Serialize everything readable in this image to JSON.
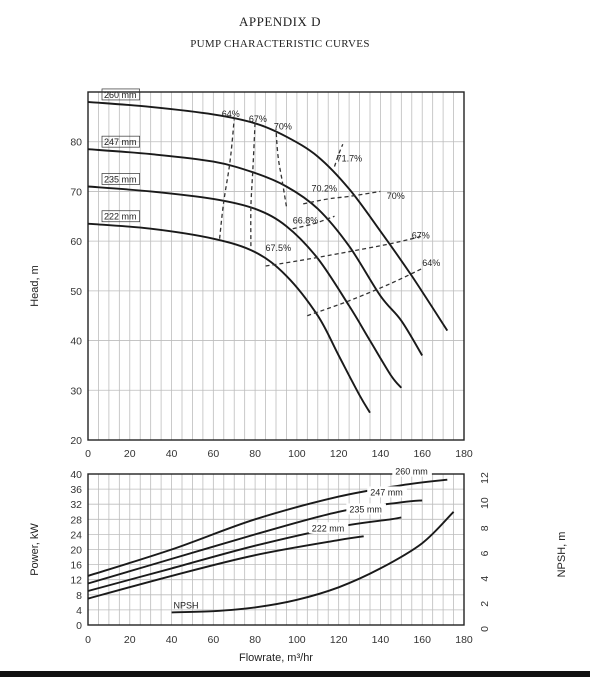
{
  "header": {
    "appendix": "APPENDIX   D",
    "title": "PUMP CHARACTERISTIC CURVES"
  },
  "chart_data": [
    {
      "type": "line",
      "name": "head-curves",
      "ylabel": "Head, m",
      "xlim": [
        0,
        180
      ],
      "ylim": [
        20,
        90
      ],
      "xticks": [
        0,
        20,
        40,
        60,
        80,
        100,
        120,
        140,
        160,
        180
      ],
      "yticks": [
        20,
        30,
        40,
        50,
        60,
        70,
        80
      ],
      "grid": true,
      "series": [
        {
          "name": "260 mm",
          "x": [
            0,
            30,
            60,
            80,
            95,
            110,
            125,
            140,
            155,
            172
          ],
          "y": [
            88,
            87,
            85.5,
            83.7,
            81,
            77,
            70.5,
            62,
            53,
            42
          ]
        },
        {
          "name": "247 mm",
          "x": [
            0,
            30,
            60,
            80,
            95,
            110,
            125,
            140,
            150,
            160
          ],
          "y": [
            78.5,
            77.5,
            76,
            73.7,
            71,
            66.5,
            59,
            49,
            44,
            37
          ]
        },
        {
          "name": "235 mm",
          "x": [
            0,
            30,
            60,
            80,
            95,
            110,
            125,
            135,
            145,
            150
          ],
          "y": [
            71,
            70,
            68.5,
            66.5,
            63,
            56.5,
            47,
            40,
            33,
            30.5
          ]
        },
        {
          "name": "222 mm",
          "x": [
            0,
            30,
            60,
            80,
            95,
            110,
            120,
            130,
            135
          ],
          "y": [
            63.5,
            62.5,
            60.5,
            57.8,
            53,
            45,
            37,
            29,
            25.5
          ]
        }
      ],
      "efficiency_lines": [
        {
          "label": "64%",
          "x": [
            63,
            65,
            68,
            70
          ],
          "y": [
            60.5,
            68,
            76,
            84.5
          ]
        },
        {
          "label": "67%",
          "x": [
            78,
            78,
            79,
            80
          ],
          "y": [
            59,
            67,
            75,
            84
          ]
        },
        {
          "label": "70%",
          "x": [
            95,
            93,
            91,
            90
          ],
          "y": [
            67,
            72,
            77,
            82.5
          ]
        },
        {
          "label": "71.7%",
          "x": [
            118,
            120,
            122
          ],
          "y": [
            75,
            77.5,
            79.5
          ]
        },
        {
          "label": "70.2%",
          "x": [
            103,
            115,
            125,
            140
          ],
          "y": [
            67.5,
            68.5,
            69,
            70
          ]
        },
        {
          "label": "66.8%",
          "x": [
            98,
            108,
            118
          ],
          "y": [
            62.5,
            63.5,
            65
          ]
        },
        {
          "label": "67.5%",
          "x": [
            85,
            100,
            120,
            145,
            160
          ],
          "y": [
            55,
            56,
            57.5,
            59.5,
            61
          ]
        },
        {
          "label": "64%",
          "x": [
            105,
            125,
            145,
            160
          ],
          "y": [
            45,
            48,
            51.5,
            54.5
          ]
        }
      ],
      "efficiency_labels": [
        {
          "text": "64%",
          "x": 64,
          "y": 85
        },
        {
          "text": "67%",
          "x": 77,
          "y": 84
        },
        {
          "text": "70%",
          "x": 89,
          "y": 82.5
        },
        {
          "text": "71.7%",
          "x": 119,
          "y": 76
        },
        {
          "text": "70.2%",
          "x": 107,
          "y": 70
        },
        {
          "text": "70%",
          "x": 143,
          "y": 68.5
        },
        {
          "text": "66.8%",
          "x": 98,
          "y": 63.5
        },
        {
          "text": "67%",
          "x": 155,
          "y": 60.5
        },
        {
          "text": "67.5%",
          "x": 85,
          "y": 58
        },
        {
          "text": "64%",
          "x": 160,
          "y": 55
        }
      ]
    },
    {
      "type": "line",
      "name": "power-npsh-curves",
      "xlabel": "Flowrate, m³/hr",
      "ylabel": "Power, kW",
      "y2label": "NPSH, m",
      "xlim": [
        0,
        180
      ],
      "ylim": [
        0,
        40
      ],
      "y2lim": [
        0,
        12
      ],
      "xticks": [
        0,
        20,
        40,
        60,
        80,
        100,
        120,
        140,
        160,
        180
      ],
      "yticks": [
        0,
        4,
        8,
        12,
        16,
        20,
        24,
        28,
        32,
        36,
        40
      ],
      "y2ticks": [
        0,
        2,
        4,
        6,
        8,
        10,
        12
      ],
      "grid": true,
      "series": [
        {
          "name": "260 mm",
          "x": [
            0,
            40,
            80,
            120,
            150,
            172
          ],
          "y": [
            13,
            20,
            28,
            34,
            37,
            38.5
          ]
        },
        {
          "name": "247 mm",
          "x": [
            0,
            40,
            80,
            120,
            150,
            160
          ],
          "y": [
            11,
            17.5,
            24,
            30,
            32.5,
            33
          ]
        },
        {
          "name": "235 mm",
          "x": [
            0,
            40,
            80,
            120,
            145,
            150
          ],
          "y": [
            9,
            15,
            21,
            26,
            28,
            28.5
          ]
        },
        {
          "name": "222 mm",
          "x": [
            0,
            40,
            80,
            120,
            132
          ],
          "y": [
            7,
            13,
            18.5,
            22.5,
            23.5
          ]
        },
        {
          "name": "NPSH",
          "axis": "y2",
          "x": [
            40,
            60,
            80,
            100,
            120,
            140,
            160,
            175
          ],
          "y": [
            1,
            1.1,
            1.4,
            2,
            3,
            4.5,
            6.5,
            9
          ]
        }
      ]
    }
  ]
}
